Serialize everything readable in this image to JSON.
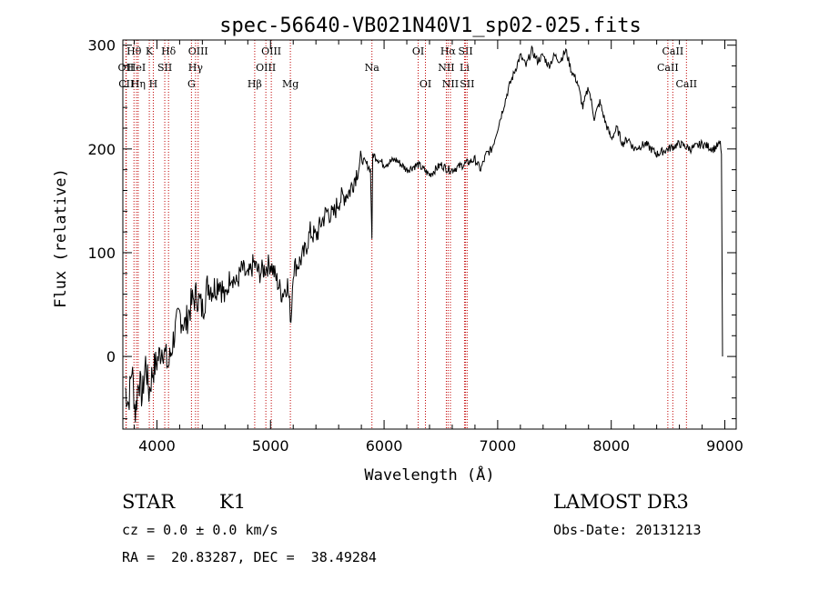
{
  "chart_data": {
    "type": "line",
    "title": "spec-56640-VB021N40V1_sp02-025.fits",
    "xlabel": "Wavelength (Å)",
    "ylabel": "Flux (relative)",
    "xlim": [
      3700,
      9100
    ],
    "ylim": [
      -70,
      305
    ],
    "xticks": [
      4000,
      5000,
      6000,
      7000,
      8000,
      9000
    ],
    "xtick_labels": [
      "4000",
      "5000",
      "6000",
      "7000",
      "8000",
      "9000"
    ],
    "yticks": [
      0,
      100,
      200,
      300
    ],
    "ytick_labels": [
      "0",
      "100",
      "200",
      "300"
    ],
    "series": [
      {
        "name": "spectrum",
        "x": [
          3720,
          3750,
          3780,
          3810,
          3840,
          3870,
          3900,
          3930,
          3960,
          4000,
          4050,
          4100,
          4150,
          4200,
          4250,
          4300,
          4350,
          4400,
          4450,
          4500,
          4550,
          4600,
          4650,
          4700,
          4750,
          4800,
          4850,
          4900,
          4950,
          5000,
          5050,
          5100,
          5150,
          5180,
          5200,
          5250,
          5300,
          5350,
          5400,
          5450,
          5500,
          5550,
          5600,
          5650,
          5700,
          5750,
          5800,
          5850,
          5880,
          5893,
          5900,
          5950,
          6000,
          6100,
          6200,
          6300,
          6400,
          6500,
          6563,
          6600,
          6700,
          6800,
          6850,
          6900,
          6950,
          7000,
          7050,
          7100,
          7150,
          7200,
          7250,
          7300,
          7350,
          7400,
          7450,
          7500,
          7550,
          7600,
          7650,
          7700,
          7750,
          7800,
          7850,
          7900,
          7950,
          8000,
          8050,
          8100,
          8150,
          8200,
          8300,
          8400,
          8500,
          8600,
          8700,
          8800,
          8900,
          8960,
          8970,
          8980
        ],
        "y": [
          -30,
          -45,
          -10,
          -55,
          -20,
          -40,
          -5,
          -35,
          -15,
          -5,
          10,
          -10,
          20,
          40,
          30,
          50,
          60,
          45,
          70,
          65,
          75,
          55,
          80,
          70,
          85,
          75,
          90,
          80,
          85,
          90,
          75,
          60,
          70,
          35,
          85,
          90,
          100,
          120,
          115,
          130,
          140,
          135,
          150,
          155,
          160,
          175,
          190,
          185,
          180,
          115,
          195,
          190,
          185,
          190,
          180,
          185,
          175,
          185,
          180,
          180,
          185,
          190,
          180,
          195,
          200,
          220,
          240,
          260,
          275,
          290,
          280,
          295,
          285,
          290,
          280,
          290,
          285,
          295,
          275,
          265,
          240,
          260,
          230,
          245,
          225,
          210,
          220,
          205,
          210,
          200,
          205,
          195,
          200,
          205,
          200,
          205,
          200,
          205,
          195,
          0
        ]
      }
    ],
    "line_markers": [
      {
        "label": "Hθ",
        "x": 3798,
        "row": 0
      },
      {
        "label": "OII",
        "x": 3727,
        "row": 1
      },
      {
        "label": "CII",
        "x": 3730,
        "row": 2
      },
      {
        "label": "HeI",
        "x": 3820,
        "row": 1
      },
      {
        "label": "Hη",
        "x": 3835,
        "row": 2
      },
      {
        "label": "K",
        "x": 3933,
        "row": 0
      },
      {
        "label": "SII",
        "x": 4069,
        "row": 1
      },
      {
        "label": "H",
        "x": 3968,
        "row": 2
      },
      {
        "label": "Hδ",
        "x": 4102,
        "row": 0
      },
      {
        "label": "OIII",
        "x": 4363,
        "row": 0
      },
      {
        "label": "Hγ",
        "x": 4340,
        "row": 1
      },
      {
        "label": "G",
        "x": 4304,
        "row": 2
      },
      {
        "label": "Hβ",
        "x": 4861,
        "row": 2
      },
      {
        "label": "OIII",
        "x": 5007,
        "row": 0
      },
      {
        "label": "OIII",
        "x": 4959,
        "row": 1
      },
      {
        "label": "Mg",
        "x": 5175,
        "row": 2
      },
      {
        "label": "Na",
        "x": 5893,
        "row": 1
      },
      {
        "label": "OI",
        "x": 6300,
        "row": 0
      },
      {
        "label": "OI",
        "x": 6364,
        "row": 2
      },
      {
        "label": "Hα",
        "x": 6563,
        "row": 0
      },
      {
        "label": "SII",
        "x": 6717,
        "row": 0
      },
      {
        "label": "NII",
        "x": 6548,
        "row": 1
      },
      {
        "label": "Li",
        "x": 6708,
        "row": 1
      },
      {
        "label": "NII",
        "x": 6584,
        "row": 2
      },
      {
        "label": "SII",
        "x": 6731,
        "row": 2
      },
      {
        "label": "CaII",
        "x": 8542,
        "row": 0
      },
      {
        "label": "CaII",
        "x": 8498,
        "row": 1
      },
      {
        "label": "CaII",
        "x": 8662,
        "row": 2
      }
    ]
  },
  "info": {
    "class_label": "STAR",
    "subclass": "K1",
    "survey": "LAMOST DR3",
    "redshift_text": "cz = 0.0 ± 0.0 km/s",
    "obs_date": "Obs-Date: 20131213",
    "coords": "RA =  20.83287, DEC =  38.49284"
  }
}
